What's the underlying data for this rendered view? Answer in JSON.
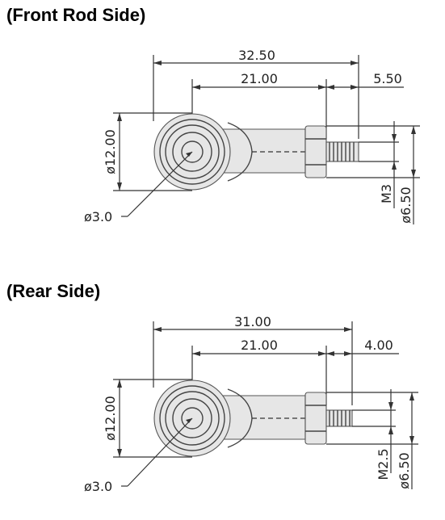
{
  "front": {
    "heading": "(Front Rod Side)",
    "dim_overall": "32.50",
    "dim_center": "21.00",
    "dim_thread_len": "5.50",
    "dim_head_dia": "ø12.00",
    "dim_thread": "M3",
    "dim_nut_dia": "ø6.50",
    "dim_hole": "ø3.0"
  },
  "rear": {
    "heading": "(Rear Side)",
    "dim_overall": "31.00",
    "dim_center": "21.00",
    "dim_thread_len": "4.00",
    "dim_head_dia": "ø12.00",
    "dim_thread": "M2.5",
    "dim_nut_dia": "ø6.50",
    "dim_hole": "ø3.0"
  }
}
